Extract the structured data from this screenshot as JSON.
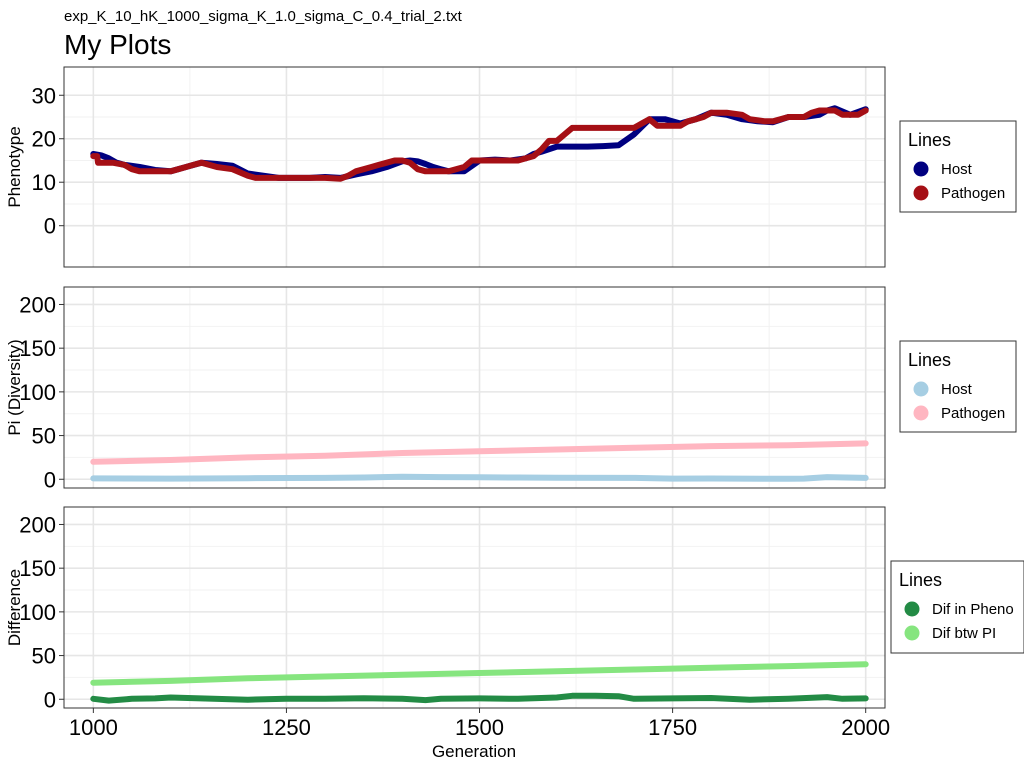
{
  "header": {
    "subtitle": "exp_K_10_hK_1000_sigma_K_1.0_sigma_C_0.4_trial_2.txt",
    "title": "My Plots"
  },
  "shared_x": {
    "label": "Generation",
    "ticks": [
      1000,
      1250,
      1500,
      1750,
      2000
    ],
    "range": [
      962,
      2025
    ]
  },
  "chart_data": [
    {
      "type": "line",
      "ylabel": "Phenotype",
      "ylim": [
        -9.5,
        36.5
      ],
      "yticks": [
        0,
        10,
        20,
        30
      ],
      "grid": true,
      "legend": {
        "title": "Lines",
        "placement": "right"
      },
      "series": [
        {
          "name": "Host",
          "color": "#000080",
          "x": [
            1000,
            1010,
            1020,
            1030,
            1040,
            1060,
            1080,
            1100,
            1120,
            1140,
            1160,
            1180,
            1200,
            1220,
            1240,
            1260,
            1280,
            1300,
            1320,
            1340,
            1360,
            1380,
            1400,
            1410,
            1420,
            1430,
            1440,
            1450,
            1460,
            1480,
            1500,
            1520,
            1540,
            1560,
            1570,
            1580,
            1600,
            1620,
            1640,
            1660,
            1680,
            1700,
            1720,
            1740,
            1760,
            1780,
            1800,
            1820,
            1840,
            1860,
            1880,
            1900,
            1920,
            1940,
            1950,
            1960,
            1980,
            2000
          ],
          "values": [
            16.5,
            16.2,
            15.5,
            14.5,
            14.0,
            13.5,
            12.8,
            12.5,
            13.5,
            14.5,
            14.2,
            13.8,
            12.0,
            11.5,
            11.0,
            11.0,
            11.0,
            11.2,
            11.0,
            11.8,
            12.5,
            13.5,
            14.8,
            15.0,
            14.8,
            14.2,
            13.5,
            13.0,
            12.5,
            12.5,
            15.0,
            15.2,
            15.0,
            15.5,
            16.5,
            17.0,
            18.2,
            18.2,
            18.2,
            18.3,
            18.5,
            21.0,
            24.5,
            24.5,
            23.5,
            24.5,
            26.0,
            25.5,
            24.5,
            24.0,
            23.8,
            25.0,
            25.0,
            25.5,
            26.5,
            27.0,
            25.5,
            26.8
          ]
        },
        {
          "name": "Pathogen",
          "color": "#A50F15",
          "x": [
            1000,
            1005,
            1006,
            1020,
            1025,
            1040,
            1050,
            1060,
            1080,
            1100,
            1110,
            1120,
            1130,
            1140,
            1150,
            1160,
            1180,
            1200,
            1210,
            1240,
            1260,
            1280,
            1300,
            1320,
            1330,
            1340,
            1350,
            1360,
            1370,
            1380,
            1390,
            1400,
            1410,
            1420,
            1430,
            1440,
            1460,
            1480,
            1490,
            1500,
            1520,
            1550,
            1560,
            1570,
            1580,
            1590,
            1600,
            1610,
            1620,
            1650,
            1680,
            1700,
            1710,
            1720,
            1730,
            1760,
            1770,
            1780,
            1790,
            1800,
            1820,
            1840,
            1850,
            1870,
            1880,
            1890,
            1900,
            1920,
            1930,
            1940,
            1960,
            1970,
            1990,
            2000
          ],
          "values": [
            16.0,
            16.0,
            14.5,
            14.5,
            14.5,
            14.0,
            13.0,
            12.5,
            12.5,
            12.5,
            13.0,
            13.5,
            14.0,
            14.5,
            14.0,
            13.5,
            13.0,
            11.5,
            11.0,
            11.0,
            11.0,
            11.0,
            11.0,
            10.8,
            11.5,
            12.5,
            13.0,
            13.5,
            14.0,
            14.5,
            15.0,
            15.0,
            14.5,
            13.0,
            12.5,
            12.5,
            12.5,
            13.5,
            15.0,
            15.0,
            15.0,
            15.0,
            15.5,
            16.0,
            17.5,
            19.5,
            19.5,
            21.0,
            22.5,
            22.5,
            22.5,
            22.5,
            23.5,
            24.5,
            23.0,
            23.0,
            24.0,
            24.5,
            25.0,
            26.0,
            26.0,
            25.5,
            24.5,
            24.0,
            24.0,
            24.5,
            25.0,
            25.0,
            26.0,
            26.5,
            26.5,
            25.5,
            25.5,
            26.5
          ]
        }
      ]
    },
    {
      "type": "line",
      "ylabel": "Pi (Diversity)",
      "ylim": [
        -10,
        220
      ],
      "yticks": [
        0,
        50,
        100,
        150,
        200
      ],
      "grid": true,
      "legend": {
        "title": "Lines",
        "placement": "right"
      },
      "series": [
        {
          "name": "Host",
          "color": "#A6CEE3",
          "x": [
            1000,
            1100,
            1200,
            1300,
            1350,
            1400,
            1450,
            1500,
            1550,
            1600,
            1700,
            1750,
            1800,
            1900,
            1920,
            1950,
            2000
          ],
          "values": [
            1.0,
            0.8,
            1.2,
            1.5,
            2.0,
            2.8,
            2.5,
            2.2,
            2.0,
            1.8,
            1.5,
            0.8,
            0.9,
            0.5,
            0.8,
            2.5,
            1.5
          ]
        },
        {
          "name": "Pathogen",
          "color": "#FFB6C1",
          "x": [
            1000,
            1100,
            1200,
            1300,
            1400,
            1500,
            1600,
            1700,
            1800,
            1900,
            2000
          ],
          "values": [
            20,
            22,
            25,
            27,
            30,
            32,
            34,
            36,
            38,
            39,
            41
          ]
        }
      ]
    },
    {
      "type": "line",
      "ylabel": "Difference",
      "ylim": [
        -10,
        220
      ],
      "yticks": [
        0,
        50,
        100,
        150,
        200
      ],
      "grid": true,
      "legend": {
        "title": "Lines",
        "placement": "right"
      },
      "series": [
        {
          "name": "Dif in Pheno",
          "color": "#238B45",
          "x": [
            1000,
            1020,
            1050,
            1080,
            1100,
            1150,
            1200,
            1250,
            1300,
            1350,
            1400,
            1430,
            1450,
            1500,
            1550,
            1600,
            1620,
            1650,
            1680,
            1700,
            1750,
            1800,
            1850,
            1900,
            1950,
            1970,
            2000
          ],
          "values": [
            0.5,
            -1.5,
            0.5,
            1.0,
            2.0,
            0.8,
            -0.5,
            0.5,
            0.5,
            1.2,
            0.5,
            -1.0,
            0.5,
            1.0,
            0.5,
            2.0,
            4.0,
            4.0,
            3.5,
            0.5,
            1.0,
            1.5,
            -0.5,
            0.5,
            2.5,
            0.5,
            1.0
          ]
        },
        {
          "name": "Dif btw PI",
          "color": "#86E57F",
          "x": [
            1000,
            1100,
            1200,
            1300,
            1400,
            1500,
            1600,
            1700,
            1800,
            1900,
            2000
          ],
          "values": [
            19,
            21,
            24,
            26,
            28,
            30,
            32,
            34,
            36,
            38,
            40
          ]
        }
      ]
    }
  ]
}
